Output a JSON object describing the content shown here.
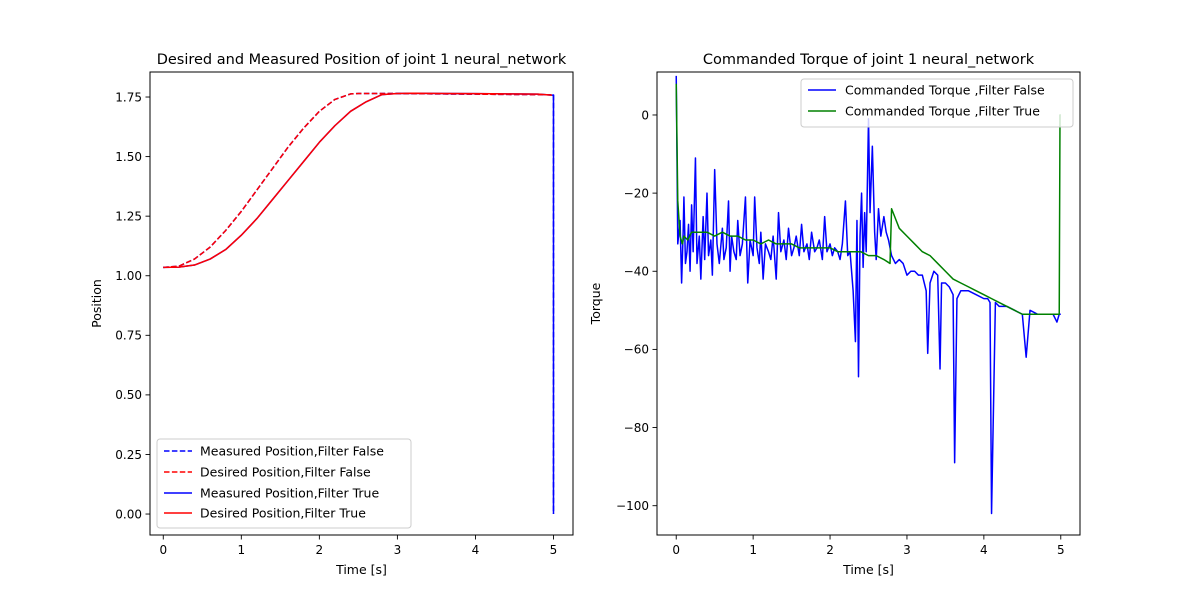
{
  "chart_data": [
    {
      "type": "line",
      "title": "Desired and Measured Position of joint 1 neural_network",
      "xlabel": "Time [s]",
      "ylabel": "Position",
      "xlim": [
        -0.17,
        5.25
      ],
      "ylim": [
        -0.088,
        1.855
      ],
      "xticks": [
        0,
        1,
        2,
        3,
        4,
        5
      ],
      "xtick_labels": [
        "0",
        "1",
        "2",
        "3",
        "4",
        "5"
      ],
      "yticks": [
        0.0,
        0.25,
        0.5,
        0.75,
        1.0,
        1.25,
        1.5,
        1.75
      ],
      "ytick_labels": [
        "0.00",
        "0.25",
        "0.50",
        "0.75",
        "1.00",
        "1.25",
        "1.50",
        "1.75"
      ],
      "grid": false,
      "legend_position": "lower-left",
      "series": [
        {
          "name": "Measured Position,Filter False",
          "color": "#0000ff",
          "dash": "dashed",
          "x": [
            0,
            0.2,
            0.4,
            0.6,
            0.8,
            1.0,
            1.2,
            1.4,
            1.6,
            1.8,
            2.0,
            2.2,
            2.4,
            2.5,
            2.8,
            3.2,
            3.6,
            4.0,
            4.4,
            4.8,
            4.98,
            5.0,
            5.0
          ],
          "y": [
            1.035,
            1.04,
            1.07,
            1.12,
            1.19,
            1.27,
            1.36,
            1.45,
            1.54,
            1.62,
            1.69,
            1.74,
            1.763,
            1.765,
            1.765,
            1.764,
            1.763,
            1.762,
            1.761,
            1.76,
            1.759,
            1.759,
            0.0
          ]
        },
        {
          "name": "Desired Position,Filter False",
          "color": "#ff0000",
          "dash": "dashed",
          "x": [
            0,
            0.2,
            0.4,
            0.6,
            0.8,
            1.0,
            1.2,
            1.4,
            1.6,
            1.8,
            2.0,
            2.2,
            2.4,
            2.5,
            2.8,
            3.2,
            3.6,
            4.0,
            4.4,
            4.8,
            4.98
          ],
          "y": [
            1.035,
            1.04,
            1.07,
            1.12,
            1.19,
            1.27,
            1.36,
            1.45,
            1.54,
            1.62,
            1.69,
            1.74,
            1.763,
            1.765,
            1.765,
            1.764,
            1.763,
            1.762,
            1.761,
            1.76,
            1.759
          ]
        },
        {
          "name": "Measured Position,Filter True",
          "color": "#0000ff",
          "dash": "solid",
          "x": [
            0,
            0.2,
            0.4,
            0.6,
            0.8,
            1.0,
            1.2,
            1.4,
            1.6,
            1.8,
            2.0,
            2.2,
            2.4,
            2.6,
            2.8,
            3.0,
            3.2,
            3.6,
            4.0,
            4.4,
            4.8,
            4.98,
            5.0,
            5.0
          ],
          "y": [
            1.035,
            1.036,
            1.045,
            1.07,
            1.11,
            1.17,
            1.24,
            1.32,
            1.4,
            1.48,
            1.56,
            1.63,
            1.69,
            1.73,
            1.76,
            1.765,
            1.766,
            1.765,
            1.764,
            1.763,
            1.762,
            1.758,
            1.758,
            0.0
          ]
        },
        {
          "name": "Desired Position,Filter True",
          "color": "#ff0000",
          "dash": "solid",
          "x": [
            0,
            0.2,
            0.4,
            0.6,
            0.8,
            1.0,
            1.2,
            1.4,
            1.6,
            1.8,
            2.0,
            2.2,
            2.4,
            2.6,
            2.8,
            3.0,
            3.2,
            3.6,
            4.0,
            4.4,
            4.8,
            4.98
          ],
          "y": [
            1.035,
            1.036,
            1.045,
            1.07,
            1.11,
            1.17,
            1.24,
            1.32,
            1.4,
            1.48,
            1.56,
            1.63,
            1.69,
            1.73,
            1.76,
            1.765,
            1.766,
            1.765,
            1.764,
            1.763,
            1.762,
            1.758
          ]
        }
      ]
    },
    {
      "type": "line",
      "title": "Commanded Torque of joint 1 neural_network",
      "xlabel": "Time [s]",
      "ylabel": "Torque",
      "xlim": [
        -0.25,
        5.25
      ],
      "ylim": [
        -107.5,
        11.0
      ],
      "xticks": [
        0,
        1,
        2,
        3,
        4,
        5
      ],
      "xtick_labels": [
        "0",
        "1",
        "2",
        "3",
        "4",
        "5"
      ],
      "yticks": [
        -100,
        -80,
        -60,
        -40,
        -20,
        0
      ],
      "ytick_labels": [
        "−100",
        "−80",
        "−60",
        "−40",
        "−20",
        "0"
      ],
      "grid": false,
      "legend_position": "upper-right",
      "series": [
        {
          "name": "Commanded Torque ,Filter False",
          "color": "#0000ff",
          "dash": "solid",
          "x": [
            0,
            0.02,
            0.05,
            0.07,
            0.09,
            0.1,
            0.12,
            0.14,
            0.16,
            0.18,
            0.2,
            0.22,
            0.25,
            0.27,
            0.3,
            0.32,
            0.35,
            0.37,
            0.4,
            0.42,
            0.45,
            0.47,
            0.5,
            0.53,
            0.56,
            0.6,
            0.62,
            0.65,
            0.68,
            0.7,
            0.72,
            0.75,
            0.78,
            0.8,
            0.83,
            0.86,
            0.9,
            0.93,
            0.96,
            1.0,
            1.02,
            1.05,
            1.08,
            1.1,
            1.13,
            1.16,
            1.2,
            1.23,
            1.26,
            1.3,
            1.33,
            1.36,
            1.4,
            1.43,
            1.46,
            1.5,
            1.53,
            1.56,
            1.6,
            1.63,
            1.66,
            1.7,
            1.73,
            1.76,
            1.8,
            1.83,
            1.86,
            1.9,
            1.93,
            1.96,
            2.0,
            2.03,
            2.06,
            2.1,
            2.13,
            2.16,
            2.2,
            2.23,
            2.26,
            2.3,
            2.33,
            2.35,
            2.37,
            2.39,
            2.41,
            2.43,
            2.45,
            2.47,
            2.5,
            2.52,
            2.55,
            2.58,
            2.6,
            2.63,
            2.66,
            2.7,
            2.73,
            2.76,
            2.8,
            2.85,
            2.9,
            2.95,
            3.0,
            3.05,
            3.1,
            3.15,
            3.2,
            3.25,
            3.27,
            3.3,
            3.35,
            3.4,
            3.43,
            3.45,
            3.5,
            3.55,
            3.6,
            3.62,
            3.65,
            3.7,
            3.8,
            3.9,
            4.0,
            4.05,
            4.08,
            4.1,
            4.15,
            4.2,
            4.3,
            4.4,
            4.5,
            4.55,
            4.6,
            4.7,
            4.8,
            4.9,
            4.95,
            4.98,
            5.0
          ],
          "y": [
            10,
            -33,
            -27,
            -43,
            -30,
            -21,
            -38,
            -35,
            -28,
            -40,
            -23,
            -35,
            -11,
            -38,
            -31,
            -42,
            -26,
            -37,
            -20,
            -36,
            -32,
            -41,
            -14,
            -33,
            -38,
            -29,
            -37,
            -34,
            -22,
            -40,
            -31,
            -35,
            -37,
            -27,
            -36,
            -33,
            -21,
            -43,
            -32,
            -36,
            -21,
            -34,
            -38,
            -30,
            -42,
            -33,
            -35,
            -37,
            -31,
            -42,
            -25,
            -35,
            -32,
            -37,
            -29,
            -36,
            -34,
            -31,
            -36,
            -28,
            -35,
            -33,
            -37,
            -30,
            -35,
            -34,
            -32,
            -37,
            -26,
            -35,
            -33,
            -36,
            -34,
            -35,
            -37,
            -33,
            -22,
            -36,
            -35,
            -45,
            -58,
            -27,
            -67,
            -31,
            -20,
            -39,
            -25,
            -35,
            -1,
            -25,
            -8,
            -30,
            -37,
            -24,
            -31,
            -26,
            -30,
            -32,
            -36,
            -38,
            -37,
            -38,
            -41,
            -40,
            -40,
            -41,
            -41,
            -45,
            -61,
            -43,
            -40,
            -41,
            -65,
            -43,
            -43,
            -44,
            -46,
            -89,
            -47,
            -45,
            -45,
            -46,
            -47,
            -47,
            -48,
            -102,
            -48,
            -49,
            -49,
            -50,
            -51,
            -62,
            -50,
            -51,
            -51,
            -51,
            -53,
            -51,
            -51
          ]
        },
        {
          "name": "Commanded Torque ,Filter True",
          "color": "#008000",
          "dash": "solid",
          "x": [
            0,
            0.02,
            0.05,
            0.08,
            0.1,
            0.15,
            0.2,
            0.3,
            0.4,
            0.5,
            0.6,
            0.7,
            0.8,
            0.9,
            1.0,
            1.1,
            1.2,
            1.3,
            1.4,
            1.5,
            1.6,
            1.7,
            1.8,
            1.9,
            2.0,
            2.1,
            2.2,
            2.3,
            2.4,
            2.5,
            2.6,
            2.7,
            2.78,
            2.8,
            2.82,
            2.86,
            2.9,
            3.0,
            3.1,
            3.2,
            3.3,
            3.4,
            3.5,
            3.6,
            3.7,
            3.8,
            3.9,
            4.0,
            4.1,
            4.2,
            4.3,
            4.4,
            4.5,
            4.6,
            4.7,
            4.8,
            4.9,
            4.95,
            4.98,
            4.99,
            5.0
          ],
          "y": [
            8,
            -22,
            -31,
            -33,
            -31,
            -32,
            -30,
            -30,
            -30,
            -31,
            -30,
            -31,
            -31,
            -32,
            -32,
            -33,
            -32,
            -33,
            -33,
            -33,
            -34,
            -34,
            -34,
            -34,
            -34,
            -35,
            -35,
            -35,
            -35,
            -36,
            -36,
            -37,
            -38,
            -24,
            -25,
            -27,
            -29,
            -31,
            -33,
            -35,
            -36,
            -38,
            -40,
            -42,
            -43,
            -44,
            -45,
            -46,
            -47,
            -48,
            -49,
            -50,
            -51,
            -51,
            -51,
            -51,
            -51,
            -51,
            -51,
            0,
            0
          ]
        }
      ]
    }
  ]
}
